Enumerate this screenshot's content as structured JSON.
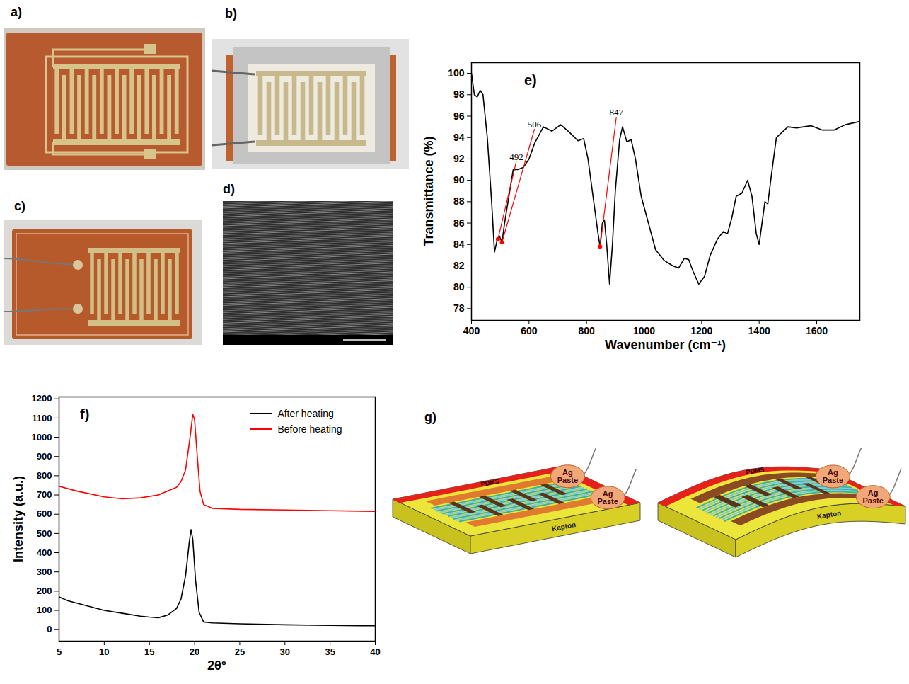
{
  "photos": [
    "a)",
    "b)",
    "c)",
    "d)"
  ],
  "chart_data": [
    {
      "panel": "e)",
      "type": "line",
      "x_label": "Wavenumber (cm⁻¹)",
      "y_label": "Transmittance (%)",
      "xlim": [
        400,
        1750
      ],
      "ylim": [
        76.9,
        101
      ],
      "xticks": [
        400,
        600,
        800,
        1000,
        1200,
        1400,
        1600
      ],
      "yticks": [
        78,
        80,
        82,
        84,
        86,
        88,
        90,
        92,
        94,
        96,
        98,
        100
      ],
      "grid": false,
      "x": [
        400,
        410,
        420,
        430,
        440,
        455,
        470,
        480,
        490,
        497,
        506,
        515,
        530,
        545,
        560,
        580,
        600,
        620,
        650,
        680,
        710,
        740,
        770,
        790,
        805,
        825,
        840,
        847,
        855,
        862,
        870,
        880,
        890,
        900,
        915,
        925,
        940,
        955,
        970,
        990,
        1010,
        1040,
        1070,
        1100,
        1120,
        1140,
        1155,
        1170,
        1190,
        1210,
        1230,
        1255,
        1275,
        1290,
        1305,
        1320,
        1340,
        1360,
        1375,
        1390,
        1400,
        1410,
        1420,
        1430,
        1445,
        1460,
        1500,
        1530,
        1580,
        1620,
        1660,
        1700,
        1750
      ],
      "series": [
        {
          "color": "#000000",
          "values": [
            100,
            98,
            97.8,
            98.4,
            98,
            94,
            88,
            83.3,
            84.5,
            84.8,
            84.2,
            86,
            88.5,
            91,
            91,
            91.2,
            92,
            93.5,
            95,
            94.6,
            95.2,
            94.5,
            93.7,
            93.9,
            92,
            88,
            85,
            83.8,
            86,
            86.3,
            84,
            80.3,
            84,
            89,
            93.8,
            95,
            93.6,
            93.8,
            92,
            88.5,
            86.5,
            83.5,
            82.5,
            82,
            81.8,
            82.7,
            82.6,
            81.5,
            80.3,
            81,
            83,
            84.5,
            85.2,
            85,
            86.5,
            88.5,
            88.8,
            90,
            88.5,
            85,
            84,
            86,
            88,
            87.8,
            91,
            94,
            95,
            94.9,
            95.1,
            94.7,
            94.7,
            95.2,
            95.5
          ]
        }
      ],
      "annotations": [
        {
          "text": "492",
          "x": 492,
          "y": 84.5
        },
        {
          "text": "506",
          "x": 506,
          "y": 84.2
        },
        {
          "text": "847",
          "x": 847,
          "y": 83.8
        }
      ]
    },
    {
      "panel": "f)",
      "type": "line",
      "x_label": "2θ°",
      "y_label": "Intensity (a.u.)",
      "xlim": [
        5,
        40
      ],
      "ylim": [
        -60,
        1210
      ],
      "xticks": [
        5,
        10,
        15,
        20,
        25,
        30,
        35,
        40
      ],
      "yticks": [
        0,
        100,
        200,
        300,
        400,
        500,
        600,
        700,
        800,
        900,
        1000,
        1100,
        1200
      ],
      "grid": false,
      "legend": "top-right",
      "series": [
        {
          "name": "After heating",
          "color": "#000000",
          "x": [
            5,
            6,
            8,
            10,
            12,
            14,
            15,
            16,
            17,
            18,
            18.5,
            19,
            19.4,
            19.6,
            19.8,
            20.1,
            20.5,
            21,
            22,
            25,
            30,
            35,
            40
          ],
          "values": [
            170,
            150,
            125,
            100,
            85,
            70,
            65,
            62,
            75,
            110,
            160,
            280,
            450,
            520,
            470,
            260,
            90,
            40,
            35,
            30,
            25,
            22,
            20
          ]
        },
        {
          "name": "Before heating",
          "color": "#ff0000",
          "x": [
            5,
            7,
            10,
            12,
            14,
            16,
            17,
            18,
            18.5,
            19,
            19.5,
            19.8,
            20,
            20.3,
            20.6,
            21,
            22,
            25,
            30,
            35,
            40
          ],
          "values": [
            745,
            720,
            690,
            680,
            685,
            700,
            720,
            740,
            770,
            830,
            1000,
            1120,
            1090,
            900,
            720,
            650,
            630,
            625,
            622,
            618,
            615
          ]
        }
      ]
    }
  ],
  "diagram": {
    "label": "g)",
    "layer": "PDMS",
    "contact": "Ag Paste",
    "substrate": "Kapton"
  }
}
